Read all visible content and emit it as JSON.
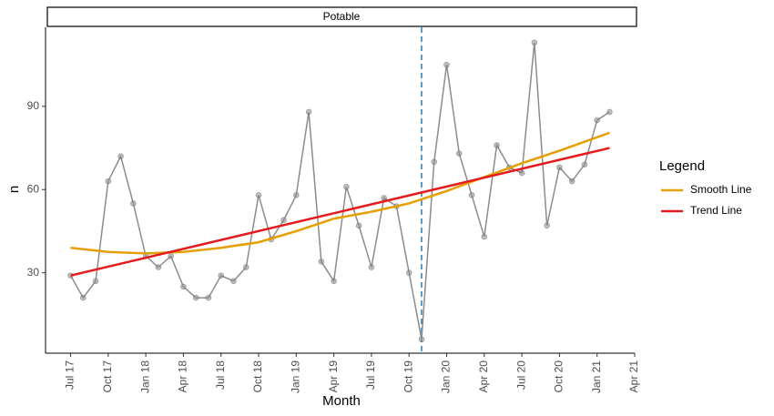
{
  "chart_data": {
    "type": "line",
    "facet": "Potable",
    "xlabel": "Month",
    "ylabel": "n",
    "legend_title": "Legend",
    "legend": "right",
    "xlim": [
      "2017-05",
      "2021-04"
    ],
    "xticks": [
      {
        "value": "2017-07",
        "label": "Jul 17"
      },
      {
        "value": "2017-10",
        "label": "Oct 17"
      },
      {
        "value": "2018-01",
        "label": "Jan 18"
      },
      {
        "value": "2018-04",
        "label": "Apr 18"
      },
      {
        "value": "2018-07",
        "label": "Jul 18"
      },
      {
        "value": "2018-10",
        "label": "Oct 18"
      },
      {
        "value": "2019-01",
        "label": "Jan 19"
      },
      {
        "value": "2019-04",
        "label": "Apr 19"
      },
      {
        "value": "2019-07",
        "label": "Jul 19"
      },
      {
        "value": "2019-10",
        "label": "Oct 19"
      },
      {
        "value": "2020-01",
        "label": "Jan 20"
      },
      {
        "value": "2020-04",
        "label": "Apr 20"
      },
      {
        "value": "2020-07",
        "label": "Jul 20"
      },
      {
        "value": "2020-10",
        "label": "Oct 20"
      },
      {
        "value": "2021-01",
        "label": "Jan 21"
      },
      {
        "value": "2021-04",
        "label": "Apr 21"
      }
    ],
    "ylim": [
      1,
      118.5
    ],
    "yticks": [
      30,
      60,
      90
    ],
    "vline": {
      "x": "2019-11",
      "color": "#2c7bb6"
    },
    "observed": {
      "color": "#8c8c8c",
      "x": [
        "2017-07",
        "2017-08",
        "2017-09",
        "2017-10",
        "2017-11",
        "2017-12",
        "2018-01",
        "2018-02",
        "2018-03",
        "2018-04",
        "2018-05",
        "2018-06",
        "2018-07",
        "2018-08",
        "2018-09",
        "2018-10",
        "2018-11",
        "2018-12",
        "2019-01",
        "2019-02",
        "2019-03",
        "2019-04",
        "2019-05",
        "2019-06",
        "2019-07",
        "2019-08",
        "2019-09",
        "2019-10",
        "2019-11",
        "2019-12",
        "2020-01",
        "2020-02",
        "2020-03",
        "2020-04",
        "2020-05",
        "2020-06",
        "2020-07",
        "2020-08",
        "2020-09",
        "2020-10",
        "2020-11",
        "2020-12",
        "2021-01",
        "2021-02"
      ],
      "values": [
        29,
        21,
        27,
        63,
        72,
        55,
        36,
        32,
        36,
        25,
        21,
        21,
        29,
        27,
        32,
        58,
        42,
        49,
        58,
        88,
        34,
        27,
        61,
        47,
        32,
        57,
        54,
        30,
        6,
        70,
        105,
        73,
        58,
        43,
        76,
        68,
        66,
        113,
        47,
        68,
        63,
        69,
        85,
        88
      ]
    },
    "series": [
      {
        "name": "Smooth Line",
        "color": "#e69f00",
        "x": [
          "2017-07",
          "2017-10",
          "2018-01",
          "2018-04",
          "2018-07",
          "2018-10",
          "2019-01",
          "2019-04",
          "2019-07",
          "2019-10",
          "2020-01",
          "2020-04",
          "2020-07",
          "2020-10",
          "2021-02"
        ],
        "values": [
          39,
          37.5,
          37,
          37.5,
          39,
          41,
          45,
          49.5,
          52,
          55,
          59.5,
          64.5,
          69.5,
          74,
          80.5
        ]
      },
      {
        "name": "Trend Line",
        "color": "#e41a1c",
        "x": [
          "2017-07",
          "2021-02"
        ],
        "values": [
          29,
          75
        ]
      }
    ]
  }
}
